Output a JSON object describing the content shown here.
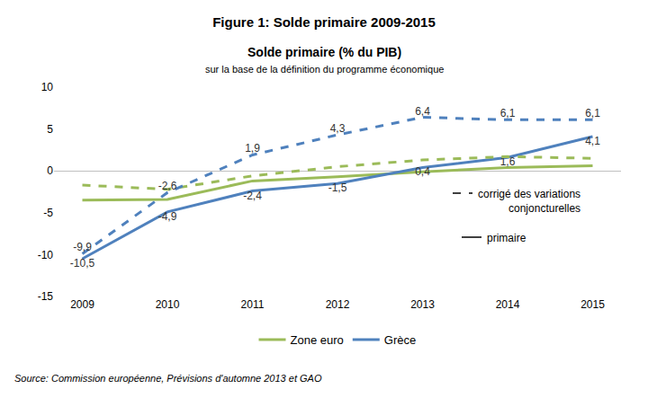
{
  "chart_data": {
    "type": "line",
    "title": "Figure 1: Solde primaire 2009-2015",
    "heading": "Solde primaire (% du PIB)",
    "subtitle": "sur la base de la définition du programme économique",
    "source": "Source: Commission européenne, Prévisions d'automne 2013 et GAO",
    "categories": [
      "2009",
      "2010",
      "2011",
      "2012",
      "2013",
      "2014",
      "2015"
    ],
    "ylim": [
      -15,
      10
    ],
    "yticks": [
      -15,
      -10,
      -5,
      0,
      5,
      10
    ],
    "grid": false,
    "legend": "bottom",
    "line_style_key": [
      {
        "line_style": "dashed",
        "lines": [
          "corrigé des variations",
          "conjoncturelles"
        ]
      },
      {
        "line_style": "solid",
        "lines": [
          "primaire"
        ]
      }
    ],
    "series": [
      {
        "name": "Zone euro",
        "color": "#9bbb59",
        "line_style": "solid",
        "data_labels": false,
        "values": [
          -3.5,
          -3.4,
          -1.2,
          -0.7,
          -0.1,
          0.4,
          0.6
        ]
      },
      {
        "name": "Grèce",
        "color": "#4f81bd",
        "line_style": "solid",
        "data_labels": true,
        "values": [
          -10.5,
          -4.9,
          -2.4,
          -1.5,
          0.4,
          1.6,
          4.1
        ],
        "value_labels": [
          "-10,5",
          "-4,9",
          "-2,4",
          "-1,5",
          "0,4",
          "1,6",
          "4,1"
        ]
      },
      {
        "name": "Zone euro",
        "color": "#9bbb59",
        "line_style": "dashed",
        "data_labels": false,
        "values": [
          -1.7,
          -2.2,
          -0.6,
          0.5,
          1.3,
          1.7,
          1.5
        ]
      },
      {
        "name": "Grèce",
        "color": "#4f81bd",
        "line_style": "dashed",
        "data_labels": true,
        "values": [
          -9.9,
          -2.6,
          1.9,
          4.3,
          6.4,
          6.1,
          6.1
        ],
        "value_labels": [
          "-9,9",
          "-2,6",
          "1,9",
          "4,3",
          "6,4",
          "6,1",
          "6,1"
        ]
      }
    ]
  }
}
